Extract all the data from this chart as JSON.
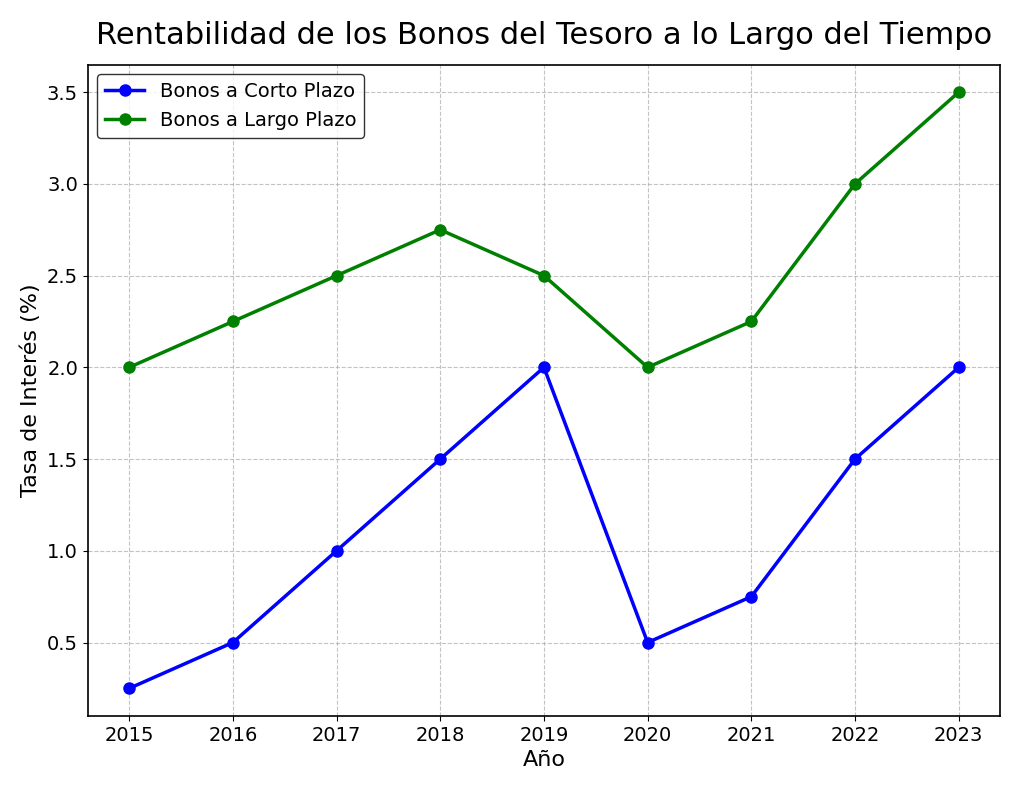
{
  "title": "Rentabilidad de los Bonos del Tesoro a lo Largo del Tiempo",
  "xlabel": "Año",
  "ylabel": "Tasa de Interés (%)",
  "years": [
    2015,
    2016,
    2017,
    2018,
    2019,
    2020,
    2021,
    2022,
    2023
  ],
  "short_term": [
    0.25,
    0.5,
    1.0,
    1.5,
    2.0,
    0.5,
    0.75,
    1.5,
    2.0
  ],
  "long_term": [
    2.0,
    2.25,
    2.5,
    2.75,
    2.5,
    2.0,
    2.25,
    3.0,
    3.5
  ],
  "short_term_label": "Bonos a Corto Plazo",
  "long_term_label": "Bonos a Largo Plazo",
  "short_term_color": "blue",
  "long_term_color": "green",
  "ylim_min": 0.1,
  "ylim_max": 3.65,
  "xlim_min": 2014.6,
  "xlim_max": 2023.4,
  "background_color": "#ffffff",
  "grid_color": "#aaaaaa",
  "title_fontsize": 22,
  "label_fontsize": 16,
  "tick_fontsize": 14,
  "legend_fontsize": 14,
  "line_width": 2.5,
  "marker_size": 8,
  "yticks": [
    0.5,
    1.0,
    1.5,
    2.0,
    2.5,
    3.0,
    3.5
  ]
}
